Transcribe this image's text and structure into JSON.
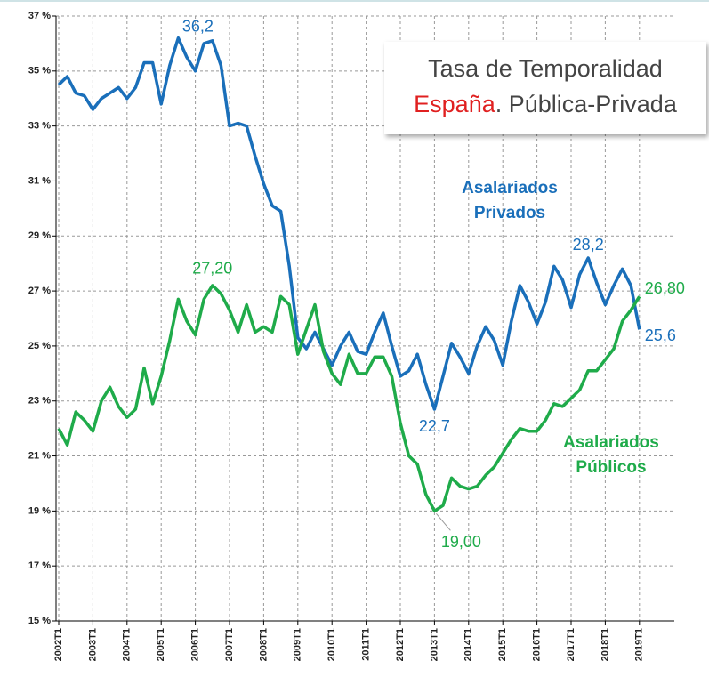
{
  "chart_data": {
    "type": "line",
    "title": "Tasa de Temporalidad",
    "subtitle": [
      "España",
      ". Pública-Privada"
    ],
    "categories": [
      "2002T1",
      null,
      null,
      null,
      "2003T1",
      null,
      null,
      null,
      "2004T1",
      null,
      null,
      null,
      "2005T1",
      null,
      null,
      null,
      "2006T1",
      null,
      null,
      null,
      "2007T1",
      null,
      null,
      null,
      "2008T1",
      null,
      null,
      null,
      "2009T1",
      null,
      null,
      null,
      "2010T1",
      null,
      null,
      null,
      "2011T1",
      null,
      null,
      null,
      "2012T1",
      null,
      null,
      null,
      "2013T1",
      null,
      null,
      null,
      "2014T1",
      null,
      null,
      null,
      "2015T1",
      null,
      null,
      null,
      "2016T1",
      null,
      null,
      null,
      "2017T1",
      null,
      null,
      null,
      "2018T1",
      null,
      null,
      null,
      "2019T1"
    ],
    "series": [
      {
        "name": "Asalariados Privados",
        "color": "#1a6fba",
        "values": [
          34.5,
          34.8,
          34.2,
          34.1,
          33.6,
          34.0,
          34.2,
          34.4,
          34.0,
          34.4,
          35.3,
          35.3,
          33.8,
          35.2,
          36.2,
          35.5,
          35.0,
          36.0,
          36.1,
          35.2,
          33.0,
          33.1,
          33.0,
          31.9,
          30.9,
          30.1,
          29.9,
          27.9,
          25.3,
          24.9,
          25.5,
          24.9,
          24.3,
          25.0,
          25.5,
          24.8,
          24.7,
          25.5,
          26.2,
          25.0,
          23.9,
          24.1,
          24.7,
          23.6,
          22.7,
          23.9,
          25.1,
          24.6,
          24.0,
          25.0,
          25.7,
          25.2,
          24.3,
          25.9,
          27.2,
          26.6,
          25.8,
          26.6,
          27.9,
          27.4,
          26.4,
          27.6,
          28.2,
          27.3,
          26.5,
          27.2,
          27.8,
          27.2,
          25.6
        ],
        "value_labels": [
          null,
          null,
          null,
          null,
          null,
          null,
          null,
          null,
          null,
          null,
          null,
          null,
          null,
          null,
          "36,2",
          null,
          null,
          null,
          null,
          null,
          null,
          null,
          null,
          null,
          null,
          null,
          null,
          null,
          null,
          null,
          null,
          null,
          null,
          null,
          null,
          null,
          null,
          null,
          null,
          null,
          null,
          null,
          null,
          null,
          "22,7",
          null,
          null,
          null,
          null,
          null,
          null,
          null,
          null,
          null,
          null,
          null,
          null,
          null,
          null,
          null,
          null,
          null,
          "28,2",
          null,
          null,
          null,
          null,
          null,
          "25,6"
        ]
      },
      {
        "name": "Asalariados Públicos",
        "color": "#1fab4a",
        "values": [
          22.0,
          21.4,
          22.6,
          22.3,
          21.9,
          23.0,
          23.5,
          22.8,
          22.4,
          22.7,
          24.2,
          22.9,
          23.9,
          25.2,
          26.7,
          25.9,
          25.4,
          26.7,
          27.2,
          26.9,
          26.3,
          25.5,
          26.5,
          25.5,
          25.7,
          25.5,
          26.8,
          26.5,
          24.7,
          25.6,
          26.5,
          24.8,
          24.0,
          23.6,
          24.7,
          24.0,
          24.0,
          24.6,
          24.6,
          23.9,
          22.2,
          21.0,
          20.7,
          19.6,
          19.0,
          19.2,
          20.2,
          19.9,
          19.8,
          19.9,
          20.3,
          20.6,
          21.1,
          21.6,
          22.0,
          21.9,
          21.9,
          22.3,
          22.9,
          22.8,
          23.1,
          23.4,
          24.1,
          24.1,
          24.5,
          24.9,
          25.9,
          26.3,
          26.8
        ],
        "value_labels": [
          null,
          null,
          null,
          null,
          null,
          null,
          null,
          null,
          null,
          null,
          null,
          null,
          null,
          null,
          null,
          null,
          null,
          null,
          "27,20",
          null,
          null,
          null,
          null,
          null,
          null,
          null,
          null,
          null,
          null,
          null,
          null,
          null,
          null,
          null,
          null,
          null,
          null,
          null,
          null,
          null,
          null,
          null,
          null,
          null,
          "19,00",
          null,
          null,
          null,
          null,
          null,
          null,
          null,
          null,
          null,
          null,
          null,
          null,
          null,
          null,
          null,
          null,
          null,
          null,
          null,
          null,
          null,
          null,
          null,
          "26,80"
        ]
      }
    ],
    "ylim": [
      15,
      37
    ],
    "yticks": [
      {
        "value": 15,
        "label": "15 %"
      },
      {
        "value": 17,
        "label": "17 %"
      },
      {
        "value": 19,
        "label": "19 %"
      },
      {
        "value": 21,
        "label": "21 %"
      },
      {
        "value": 23,
        "label": "23 %"
      },
      {
        "value": 25,
        "label": "25 %"
      },
      {
        "value": 27,
        "label": "27 %"
      },
      {
        "value": 29,
        "label": "29 %"
      },
      {
        "value": 31,
        "label": "31 %"
      },
      {
        "value": 33,
        "label": "33 %"
      },
      {
        "value": 35,
        "label": "35 %"
      },
      {
        "value": 37,
        "label": "37 %"
      }
    ],
    "grid": true
  }
}
